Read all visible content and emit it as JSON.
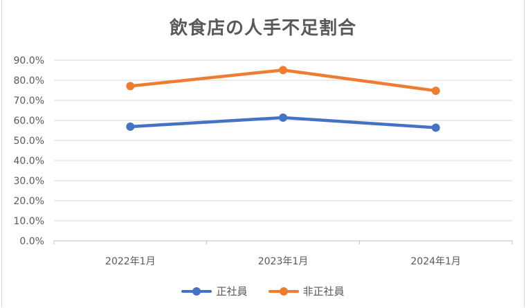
{
  "chart_data": {
    "type": "line",
    "title": "飲食店の人手不足割合",
    "categories": [
      "2022年1月",
      "2023年1月",
      "2024年1月"
    ],
    "series": [
      {
        "name": "正社員",
        "values": [
          56.9,
          61.4,
          56.4
        ],
        "color": "#4472c4"
      },
      {
        "name": "非正社員",
        "values": [
          77.1,
          85.1,
          74.8
        ],
        "color": "#ed7d31"
      }
    ],
    "ylim": [
      0,
      90
    ],
    "yticks": [
      "0.0%",
      "10.0%",
      "20.0%",
      "30.0%",
      "40.0%",
      "50.0%",
      "60.0%",
      "70.0%",
      "80.0%",
      "90.0%"
    ],
    "grid": true,
    "legend_position": "bottom"
  }
}
